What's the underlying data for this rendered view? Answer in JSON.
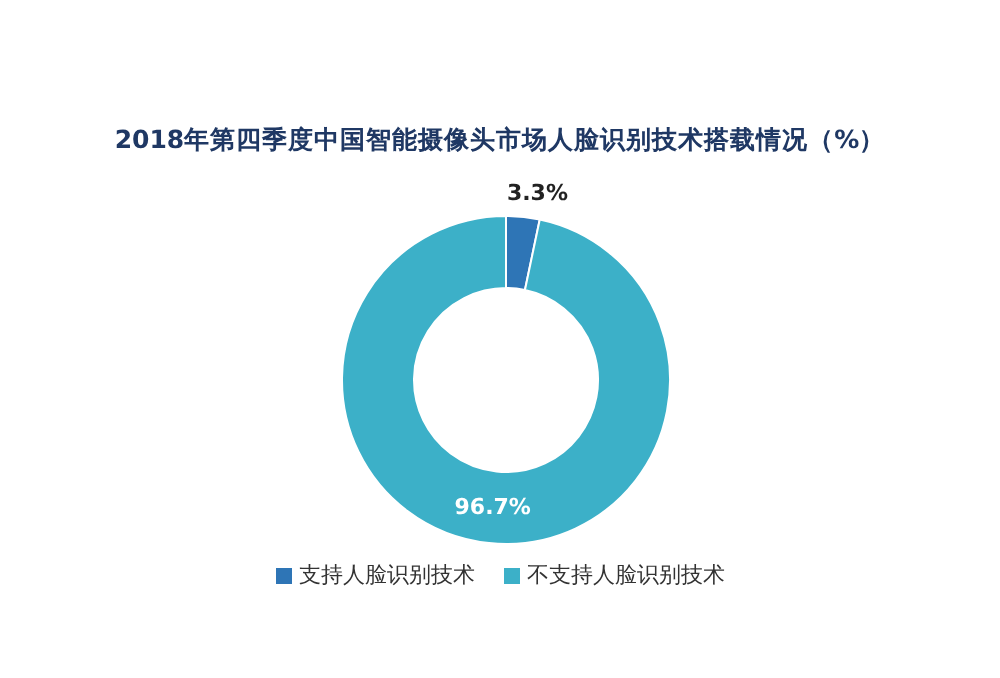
{
  "chart_data": {
    "type": "donut",
    "title": "2018年第四季度中国智能摄像头市场人脸识别技术搭载情况（%）",
    "categories": [
      "支持人脸识别技术",
      "不支持人脸识别技术"
    ],
    "values": [
      3.3,
      96.7
    ],
    "colors": [
      "#2e75b6",
      "#3cb0c8"
    ],
    "value_labels": [
      "3.3%",
      "96.7%"
    ],
    "legend": "bottom"
  }
}
